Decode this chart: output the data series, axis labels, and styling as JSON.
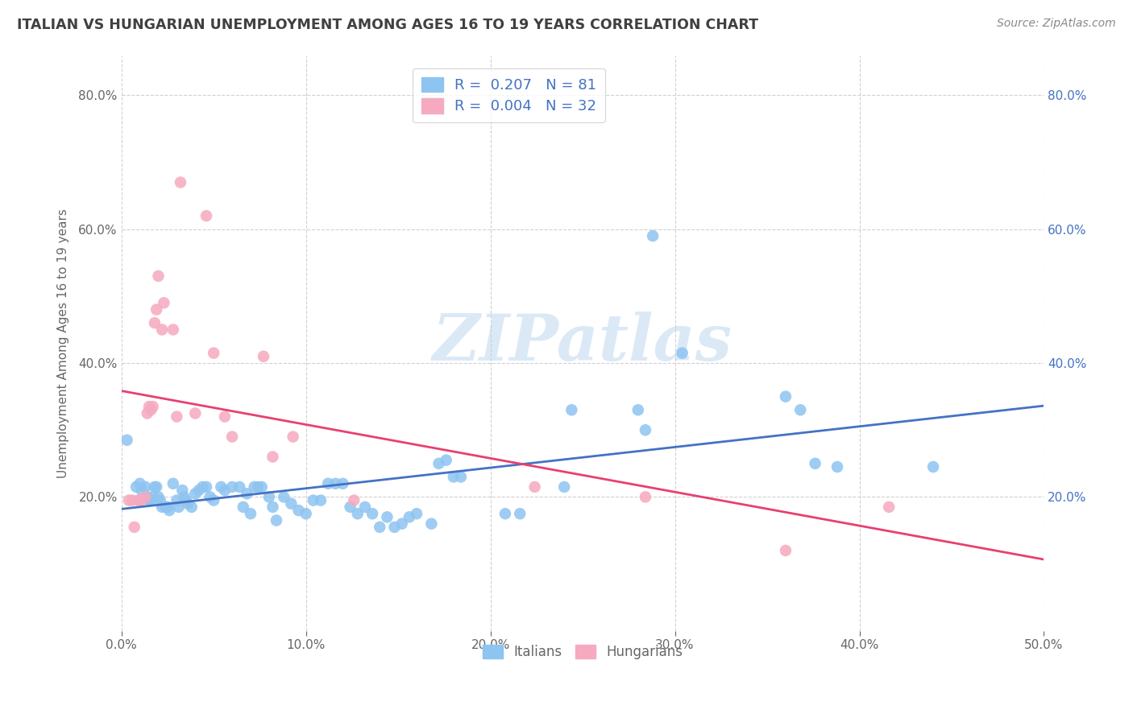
{
  "title": "ITALIAN VS HUNGARIAN UNEMPLOYMENT AMONG AGES 16 TO 19 YEARS CORRELATION CHART",
  "source": "Source: ZipAtlas.com",
  "ylabel": "Unemployment Among Ages 16 to 19 years",
  "xlim": [
    0.0,
    0.5
  ],
  "ylim": [
    0.0,
    0.86
  ],
  "x_ticks": [
    0.0,
    0.1,
    0.2,
    0.3,
    0.4,
    0.5
  ],
  "x_tick_labels": [
    "0.0%",
    "",
    "",
    "",
    "",
    "50.0%"
  ],
  "y_ticks": [
    0.0,
    0.2,
    0.4,
    0.6,
    0.8
  ],
  "y_tick_labels": [
    "",
    "20.0%",
    "40.0%",
    "60.0%",
    "80.0%"
  ],
  "italian_R": 0.207,
  "italian_N": 81,
  "hungarian_R": 0.004,
  "hungarian_N": 32,
  "italian_color": "#8EC4F0",
  "hungarian_color": "#F5AABF",
  "italian_line_color": "#4472C4",
  "hungarian_line_color": "#E84070",
  "watermark_text": "ZIPatlas",
  "background_color": "#FFFFFF",
  "grid_color": "#CCCCCC",
  "title_color": "#404040",
  "axis_label_color": "#666666",
  "right_tick_color": "#4472C4",
  "legend_label_color": "#4472C4",
  "italian_scatter": [
    [
      0.003,
      0.285
    ],
    [
      0.008,
      0.215
    ],
    [
      0.01,
      0.22
    ],
    [
      0.011,
      0.21
    ],
    [
      0.013,
      0.215
    ],
    [
      0.014,
      0.2
    ],
    [
      0.015,
      0.195
    ],
    [
      0.016,
      0.195
    ],
    [
      0.017,
      0.2
    ],
    [
      0.018,
      0.215
    ],
    [
      0.019,
      0.215
    ],
    [
      0.02,
      0.2
    ],
    [
      0.021,
      0.195
    ],
    [
      0.022,
      0.185
    ],
    [
      0.024,
      0.185
    ],
    [
      0.025,
      0.185
    ],
    [
      0.026,
      0.18
    ],
    [
      0.028,
      0.22
    ],
    [
      0.03,
      0.195
    ],
    [
      0.031,
      0.185
    ],
    [
      0.033,
      0.21
    ],
    [
      0.034,
      0.2
    ],
    [
      0.035,
      0.195
    ],
    [
      0.036,
      0.19
    ],
    [
      0.038,
      0.185
    ],
    [
      0.04,
      0.205
    ],
    [
      0.042,
      0.21
    ],
    [
      0.044,
      0.215
    ],
    [
      0.046,
      0.215
    ],
    [
      0.048,
      0.2
    ],
    [
      0.05,
      0.195
    ],
    [
      0.054,
      0.215
    ],
    [
      0.056,
      0.21
    ],
    [
      0.06,
      0.215
    ],
    [
      0.064,
      0.215
    ],
    [
      0.066,
      0.185
    ],
    [
      0.068,
      0.205
    ],
    [
      0.07,
      0.175
    ],
    [
      0.072,
      0.215
    ],
    [
      0.074,
      0.215
    ],
    [
      0.076,
      0.215
    ],
    [
      0.08,
      0.2
    ],
    [
      0.082,
      0.185
    ],
    [
      0.084,
      0.165
    ],
    [
      0.088,
      0.2
    ],
    [
      0.092,
      0.19
    ],
    [
      0.096,
      0.18
    ],
    [
      0.1,
      0.175
    ],
    [
      0.104,
      0.195
    ],
    [
      0.108,
      0.195
    ],
    [
      0.112,
      0.22
    ],
    [
      0.116,
      0.22
    ],
    [
      0.12,
      0.22
    ],
    [
      0.124,
      0.185
    ],
    [
      0.128,
      0.175
    ],
    [
      0.132,
      0.185
    ],
    [
      0.136,
      0.175
    ],
    [
      0.14,
      0.155
    ],
    [
      0.144,
      0.17
    ],
    [
      0.148,
      0.155
    ],
    [
      0.152,
      0.16
    ],
    [
      0.156,
      0.17
    ],
    [
      0.16,
      0.175
    ],
    [
      0.168,
      0.16
    ],
    [
      0.172,
      0.25
    ],
    [
      0.176,
      0.255
    ],
    [
      0.18,
      0.23
    ],
    [
      0.184,
      0.23
    ],
    [
      0.208,
      0.175
    ],
    [
      0.216,
      0.175
    ],
    [
      0.24,
      0.215
    ],
    [
      0.244,
      0.33
    ],
    [
      0.28,
      0.33
    ],
    [
      0.284,
      0.3
    ],
    [
      0.288,
      0.59
    ],
    [
      0.304,
      0.415
    ],
    [
      0.36,
      0.35
    ],
    [
      0.368,
      0.33
    ],
    [
      0.376,
      0.25
    ],
    [
      0.388,
      0.245
    ],
    [
      0.44,
      0.245
    ]
  ],
  "hungarian_scatter": [
    [
      0.004,
      0.195
    ],
    [
      0.006,
      0.195
    ],
    [
      0.007,
      0.155
    ],
    [
      0.009,
      0.195
    ],
    [
      0.01,
      0.195
    ],
    [
      0.011,
      0.195
    ],
    [
      0.013,
      0.2
    ],
    [
      0.014,
      0.325
    ],
    [
      0.015,
      0.335
    ],
    [
      0.016,
      0.33
    ],
    [
      0.017,
      0.335
    ],
    [
      0.018,
      0.46
    ],
    [
      0.019,
      0.48
    ],
    [
      0.02,
      0.53
    ],
    [
      0.022,
      0.45
    ],
    [
      0.023,
      0.49
    ],
    [
      0.028,
      0.45
    ],
    [
      0.03,
      0.32
    ],
    [
      0.032,
      0.67
    ],
    [
      0.04,
      0.325
    ],
    [
      0.046,
      0.62
    ],
    [
      0.05,
      0.415
    ],
    [
      0.056,
      0.32
    ],
    [
      0.06,
      0.29
    ],
    [
      0.077,
      0.41
    ],
    [
      0.082,
      0.26
    ],
    [
      0.093,
      0.29
    ],
    [
      0.126,
      0.195
    ],
    [
      0.224,
      0.215
    ],
    [
      0.284,
      0.2
    ],
    [
      0.36,
      0.12
    ],
    [
      0.416,
      0.185
    ]
  ]
}
